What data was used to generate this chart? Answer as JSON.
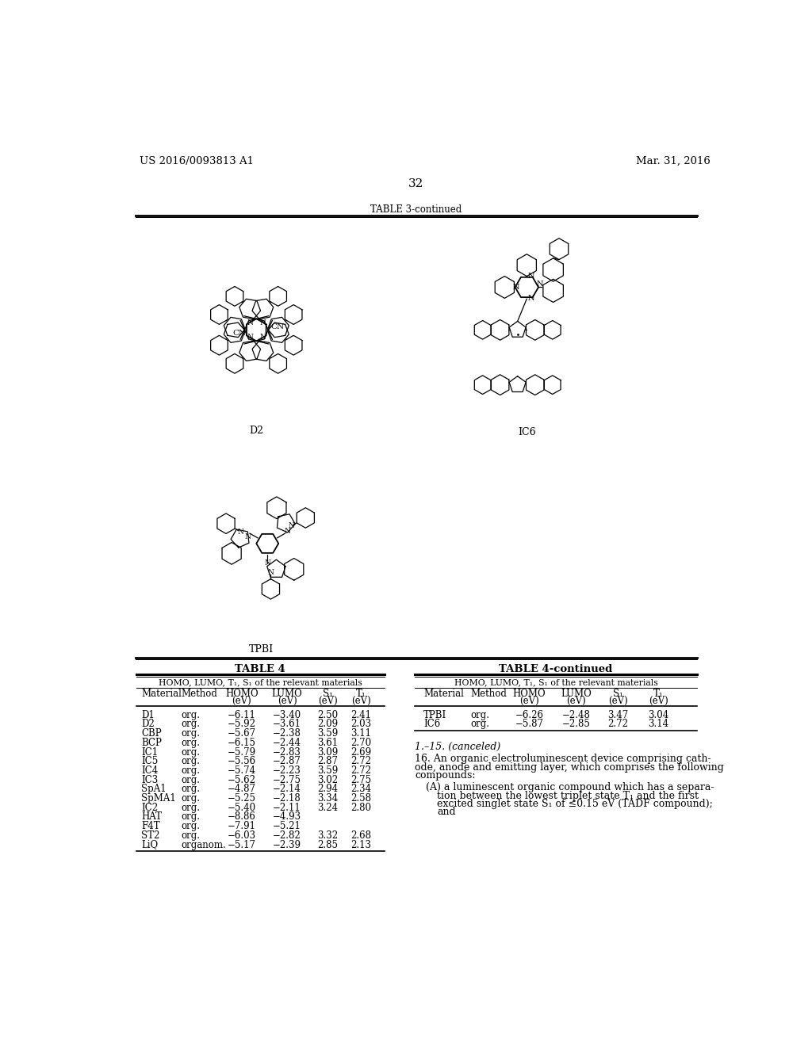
{
  "page_number": "32",
  "patent_number": "US 2016/0093813 A1",
  "patent_date": "Mar. 31, 2016",
  "table3_title": "TABLE 3-continued",
  "table4_title": "TABLE 4",
  "table4cont_title": "TABLE 4-continued",
  "table4_subtitle": "HOMO, LUMO, T₁, S₁ of the relevant materials",
  "table4cont_subtitle": "HOMO, LUMO, T₁, S₁ of the relevant materials",
  "col_headers_1": [
    "Material",
    "Method",
    "HOMO",
    "LUMO",
    "S₁",
    "T₁"
  ],
  "col_headers_2": [
    "",
    "",
    "(eV)",
    "(eV)",
    "(eV)",
    "(eV)"
  ],
  "table4_data": [
    [
      "D1",
      "org.",
      "−6.11",
      "−3.40",
      "2.50",
      "2.41"
    ],
    [
      "D2",
      "org.",
      "−5.92",
      "−3.61",
      "2.09",
      "2.03"
    ],
    [
      "CBP",
      "org.",
      "−5.67",
      "−2.38",
      "3.59",
      "3.11"
    ],
    [
      "BCP",
      "org.",
      "−6.15",
      "−2.44",
      "3.61",
      "2.70"
    ],
    [
      "IC1",
      "org.",
      "−5.79",
      "−2.83",
      "3.09",
      "2.69"
    ],
    [
      "IC5",
      "org.",
      "−5.56",
      "−2.87",
      "2.87",
      "2.72"
    ],
    [
      "IC4",
      "org.",
      "−5.74",
      "−2.23",
      "3.59",
      "2.72"
    ],
    [
      "IC3",
      "org.",
      "−5.62",
      "−2.75",
      "3.02",
      "2.75"
    ],
    [
      "SpA1",
      "org.",
      "−4.87",
      "−2.14",
      "2.94",
      "2.34"
    ],
    [
      "SpMA1",
      "org.",
      "−5.25",
      "−2.18",
      "3.34",
      "2.58"
    ],
    [
      "IC2",
      "org.",
      "−5.40",
      "−2.11",
      "3.24",
      "2.80"
    ],
    [
      "HAT",
      "org.",
      "−8.86",
      "−4.93",
      "",
      ""
    ],
    [
      "F4T",
      "org.",
      "−7.91",
      "−5.21",
      "",
      ""
    ],
    [
      "ST2",
      "org.",
      "−6.03",
      "−2.82",
      "3.32",
      "2.68"
    ],
    [
      "LiQ",
      "organom.",
      "−5.17",
      "−2.39",
      "2.85",
      "2.13"
    ]
  ],
  "table4cont_data": [
    [
      "TPBI",
      "org.",
      "−6.26",
      "−2.48",
      "3.47",
      "3.04"
    ],
    [
      "IC6",
      "org.",
      "−5.87",
      "−2.85",
      "2.72",
      "3.14"
    ]
  ],
  "claim_1_15": "1.–15. (canceled)",
  "claim_16_line1": "16. An organic electroluminescent device comprising cath-",
  "claim_16_line2": "ode, anode and emitting layer, which comprises the following",
  "claim_16_line3": "compounds:",
  "claim_A_line1": "(A) a luminescent organic compound which has a separa-",
  "claim_A_line2": "tion between the lowest triplet state T₁ and the first",
  "claim_A_line3": "excited singlet state S₁ of ≤0.15 eV (TADF compound);",
  "claim_A_line4": "and",
  "d2_label": "D2",
  "ic6_label": "IC6",
  "tpbi_label": "TPBI",
  "bg_color": "#ffffff",
  "text_color": "#000000",
  "lw_thin": 0.9,
  "lw_medium": 1.3,
  "lw_thick": 2.0
}
